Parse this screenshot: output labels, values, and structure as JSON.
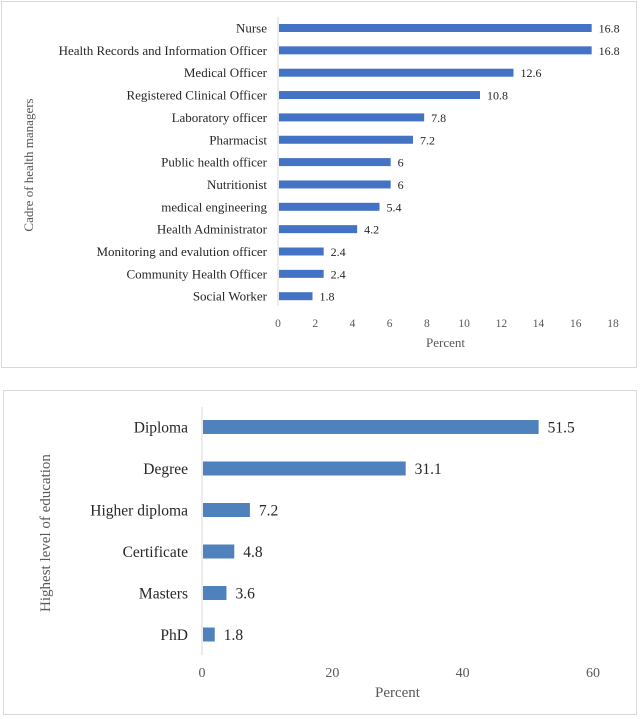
{
  "colors": {
    "bar1": "#4472C4",
    "bar2": "#4F81BD",
    "axis": "#d9d9d9"
  },
  "chart_data": [
    {
      "type": "bar",
      "orientation": "horizontal",
      "title": "",
      "xlabel": "Percent",
      "ylabel": "Cadre of health managers",
      "xlim": [
        0,
        18
      ],
      "xticks": [
        0,
        2,
        4,
        6,
        8,
        10,
        12,
        14,
        16,
        18
      ],
      "grid": false,
      "categories": [
        "Nurse",
        "Health Records and Information Officer",
        "Medical  Officer",
        "Registered Clinical Officer",
        "Laboratory officer",
        "Pharmacist",
        "Public health officer",
        "Nutritionist",
        "medical engineering",
        "Health Administrator",
        "Monitoring and evalution officer",
        "Community Health Officer",
        "Social Worker"
      ],
      "values": [
        16.8,
        16.8,
        12.6,
        10.8,
        7.8,
        7.2,
        6,
        6,
        5.4,
        4.2,
        2.4,
        2.4,
        1.8
      ],
      "value_labels": [
        "16.8",
        "16.8",
        "12.6",
        "10.8",
        "7.8",
        "7.2",
        "6",
        "6",
        "5.4",
        "4.2",
        "2.4",
        "2.4",
        "1.8"
      ]
    },
    {
      "type": "bar",
      "orientation": "horizontal",
      "title": "",
      "xlabel": "Percent",
      "ylabel": "Highest level of education",
      "xlim": [
        0,
        60
      ],
      "xticks": [
        0,
        20,
        40,
        60
      ],
      "grid": false,
      "categories": [
        "Diploma",
        "Degree",
        "Higher diploma",
        "Certificate",
        "Masters",
        "PhD"
      ],
      "values": [
        51.5,
        31.1,
        7.2,
        4.8,
        3.6,
        1.8
      ],
      "value_labels": [
        "51.5",
        "31.1",
        "7.2",
        "4.8",
        "3.6",
        "1.8"
      ]
    }
  ]
}
